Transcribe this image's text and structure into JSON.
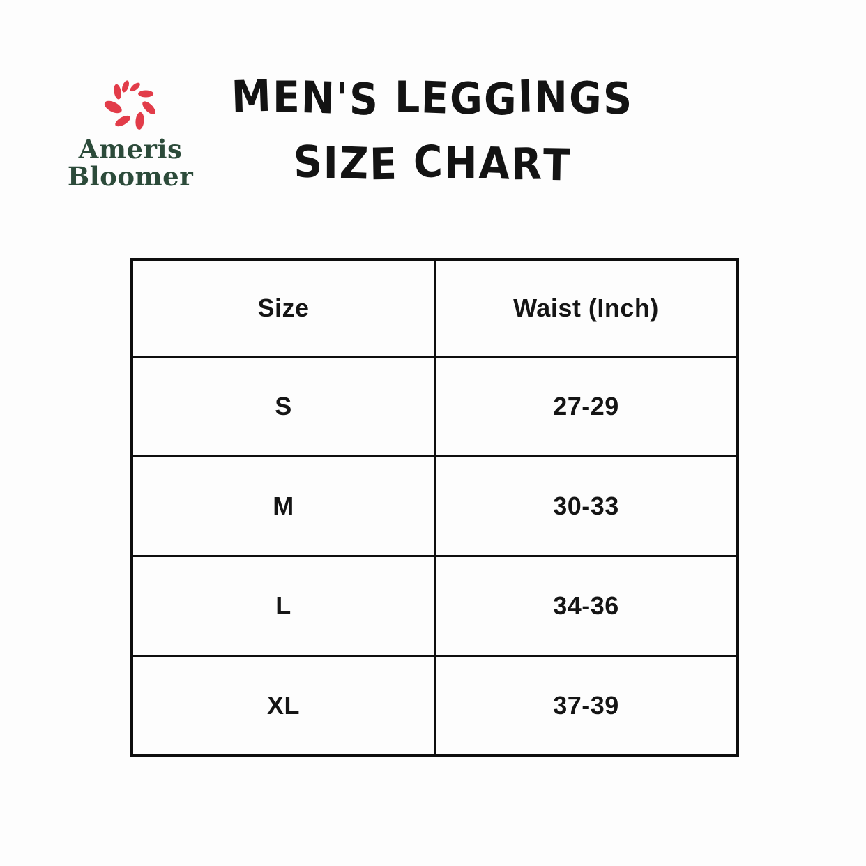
{
  "background": "#fdfdfd",
  "brand": {
    "name_line1": "Ameris",
    "name_line2": "Bloomer",
    "colors": {
      "petal_red": "#e23c49",
      "text_green": "#2c4b3a"
    }
  },
  "title": {
    "line1": "MEN'S LEGGINGS",
    "line2": "SIZE CHART"
  },
  "chart_data": {
    "type": "table",
    "title": "MEN'S LEGGINGS SIZE CHART",
    "columns": [
      "Size",
      "Waist (Inch)"
    ],
    "rows": [
      [
        "S",
        "27-29"
      ],
      [
        "M",
        "30-33"
      ],
      [
        "L",
        "34-36"
      ],
      [
        "XL",
        "37-39"
      ]
    ]
  }
}
